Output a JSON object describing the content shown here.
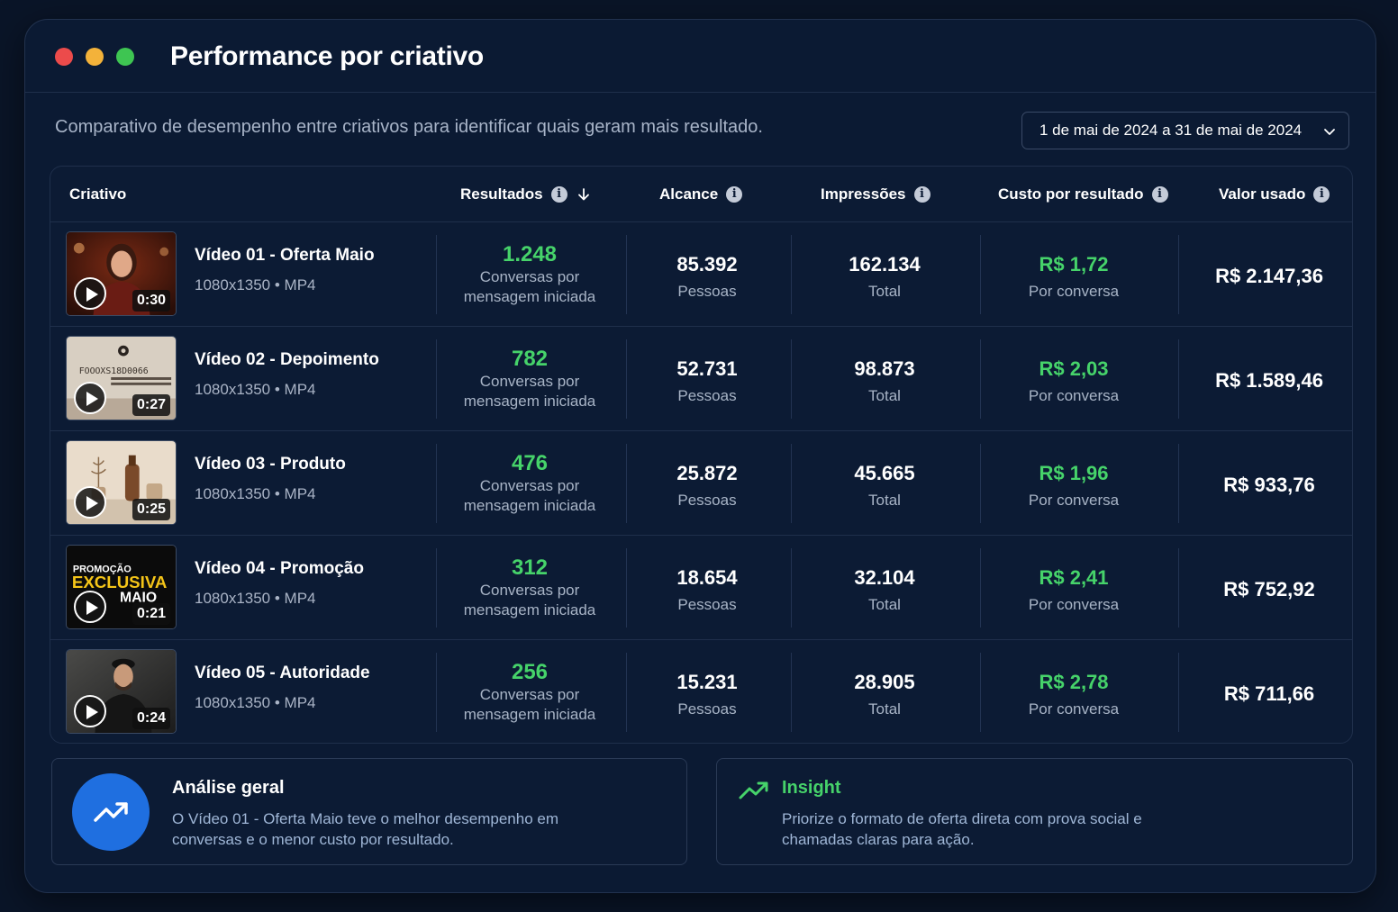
{
  "window": {
    "title": "Performance por criativo",
    "subtitle": "Comparativo de desempenho entre criativos para identificar quais geram mais resultado.",
    "date_range": "1 de mai de 2024 a 31 de mai de 2024"
  },
  "table": {
    "headers": {
      "creative": "Criativo",
      "results": "Resultados",
      "reach": "Alcance",
      "impressions": "Impressões",
      "cost_per_result": "Custo por resultado",
      "amount_spent": "Valor usado"
    },
    "info_icon": "i",
    "rows": [
      {
        "name": "Vídeo 01 - Oferta Maio",
        "meta": "1080x1350 • MP4",
        "duration": "0:30",
        "results": "1.248",
        "results_label": [
          "Conversas por",
          "mensagem iniciada"
        ],
        "reach": "85.392",
        "reach_label": "Pessoas",
        "impressions": "162.134",
        "impressions_label": "Total",
        "cost": "R$ 1,72",
        "cost_label": "Por conversa",
        "spent": "R$ 2.147,36"
      },
      {
        "name": "Vídeo 02 - Depoimento",
        "meta": "1080x1350 • MP4",
        "duration": "0:27",
        "results": "782",
        "results_label": [
          "Conversas por",
          "mensagem iniciada"
        ],
        "reach": "52.731",
        "reach_label": "Pessoas",
        "impressions": "98.873",
        "impressions_label": "Total",
        "cost": "R$ 2,03",
        "cost_label": "Por conversa",
        "spent": "R$ 1.589,46"
      },
      {
        "name": "Vídeo 03 - Produto",
        "meta": "1080x1350 • MP4",
        "duration": "0:25",
        "results": "476",
        "results_label": [
          "Conversas por",
          "mensagem iniciada"
        ],
        "reach": "25.872",
        "reach_label": "Pessoas",
        "impressions": "45.665",
        "impressions_label": "Total",
        "cost": "R$ 1,96",
        "cost_label": "Por conversa",
        "spent": "R$ 933,76"
      },
      {
        "name": "Vídeo 04 - Promoção",
        "meta": "1080x1350 • MP4",
        "duration": "0:21",
        "results": "312",
        "results_label": [
          "Conversas por",
          "mensagem iniciada"
        ],
        "reach": "18.654",
        "reach_label": "Pessoas",
        "impressions": "32.104",
        "impressions_label": "Total",
        "cost": "R$ 2,41",
        "cost_label": "Por conversa",
        "spent": "R$ 752,92"
      },
      {
        "name": "Vídeo 05 - Autoridade",
        "meta": "1080x1350 • MP4",
        "duration": "0:24",
        "results": "256",
        "results_label": [
          "Conversas por",
          "mensagem iniciada"
        ],
        "reach": "15.231",
        "reach_label": "Pessoas",
        "impressions": "28.905",
        "impressions_label": "Total",
        "cost": "R$ 2,78",
        "cost_label": "Por conversa",
        "spent": "R$ 711,66"
      }
    ]
  },
  "thumb_texts": {
    "v02": "FOOOXS18D0066",
    "v04_line1": "PROMOÇÃO",
    "v04_line2": "EXCLUSIVA",
    "v04_line3": "MAIO"
  },
  "analysis": {
    "title": "Análise geral",
    "text": "O Vídeo 01 - Oferta Maio teve o melhor desempenho em conversas e o menor custo por resultado."
  },
  "insight": {
    "title": "Insight",
    "text": "Priorize o formato de oferta direta com prova social e chamadas claras para ação."
  },
  "colors": {
    "background": "#0a1528",
    "panel": "#0b1a33",
    "accent_green": "#46d36a",
    "accent_blue": "#1f6fe0"
  },
  "icons": [
    "info-icon",
    "sort-down-icon",
    "chevron-down-icon",
    "play-icon",
    "trending-up-icon"
  ]
}
